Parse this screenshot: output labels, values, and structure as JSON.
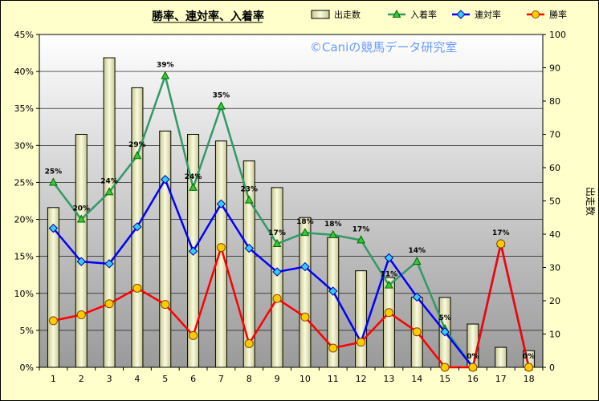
{
  "chart_data": {
    "type": "bar",
    "title": "勝率、連対率、入着率",
    "watermark": "©Caniの競馬データ研究室",
    "categories": [
      "1",
      "2",
      "3",
      "4",
      "5",
      "6",
      "7",
      "8",
      "9",
      "10",
      "11",
      "12",
      "13",
      "14",
      "15",
      "16",
      "17",
      "18"
    ],
    "y_left": {
      "range": [
        0,
        45
      ],
      "ticks": [
        "0%",
        "5%",
        "10%",
        "15%",
        "20%",
        "25%",
        "30%",
        "35%",
        "40%",
        "45%"
      ]
    },
    "y_right": {
      "label": "出走数",
      "range": [
        0,
        100
      ],
      "ticks": [
        "0",
        "10",
        "20",
        "30",
        "40",
        "50",
        "60",
        "70",
        "80",
        "90",
        "100"
      ]
    },
    "legend_position": "top",
    "series": [
      {
        "name": "出走数",
        "type": "bar",
        "axis": "right",
        "color": "#eeeebb",
        "values": [
          48,
          70,
          93,
          84,
          71,
          70,
          68,
          62,
          54,
          45,
          39,
          29,
          27,
          21,
          21,
          13,
          6,
          5
        ]
      },
      {
        "name": "入着率",
        "type": "line",
        "axis": "left",
        "color": "#339966",
        "marker": "triangle",
        "values": [
          25,
          20,
          23.7,
          28.6,
          39.4,
          24.3,
          35.3,
          22.6,
          16.7,
          18.2,
          17.9,
          17.2,
          11.1,
          14.3,
          5.2,
          0,
          16.7,
          0
        ],
        "labels": [
          "25%",
          "20%",
          "24%",
          "29%",
          "39%",
          "24%",
          "35%",
          "23%",
          "17%",
          "18%",
          "18%",
          "17%",
          "11%",
          "14%",
          "5%",
          "0%",
          "17%",
          "0%"
        ]
      },
      {
        "name": "連対率",
        "type": "line",
        "axis": "left",
        "color": "#0000ff",
        "marker": "diamond",
        "values": [
          18.8,
          14.3,
          14.0,
          19.0,
          25.4,
          15.7,
          22.1,
          16.1,
          12.9,
          13.6,
          10.3,
          3.4,
          14.8,
          9.5,
          4.8,
          0,
          16.7,
          0
        ]
      },
      {
        "name": "勝率",
        "type": "line",
        "axis": "left",
        "color": "#ff0000",
        "marker": "circle",
        "values": [
          6.3,
          7.1,
          8.6,
          10.7,
          8.5,
          4.3,
          16.2,
          3.2,
          9.3,
          6.8,
          2.6,
          3.4,
          7.4,
          4.8,
          0,
          0,
          16.7,
          0
        ]
      }
    ]
  }
}
